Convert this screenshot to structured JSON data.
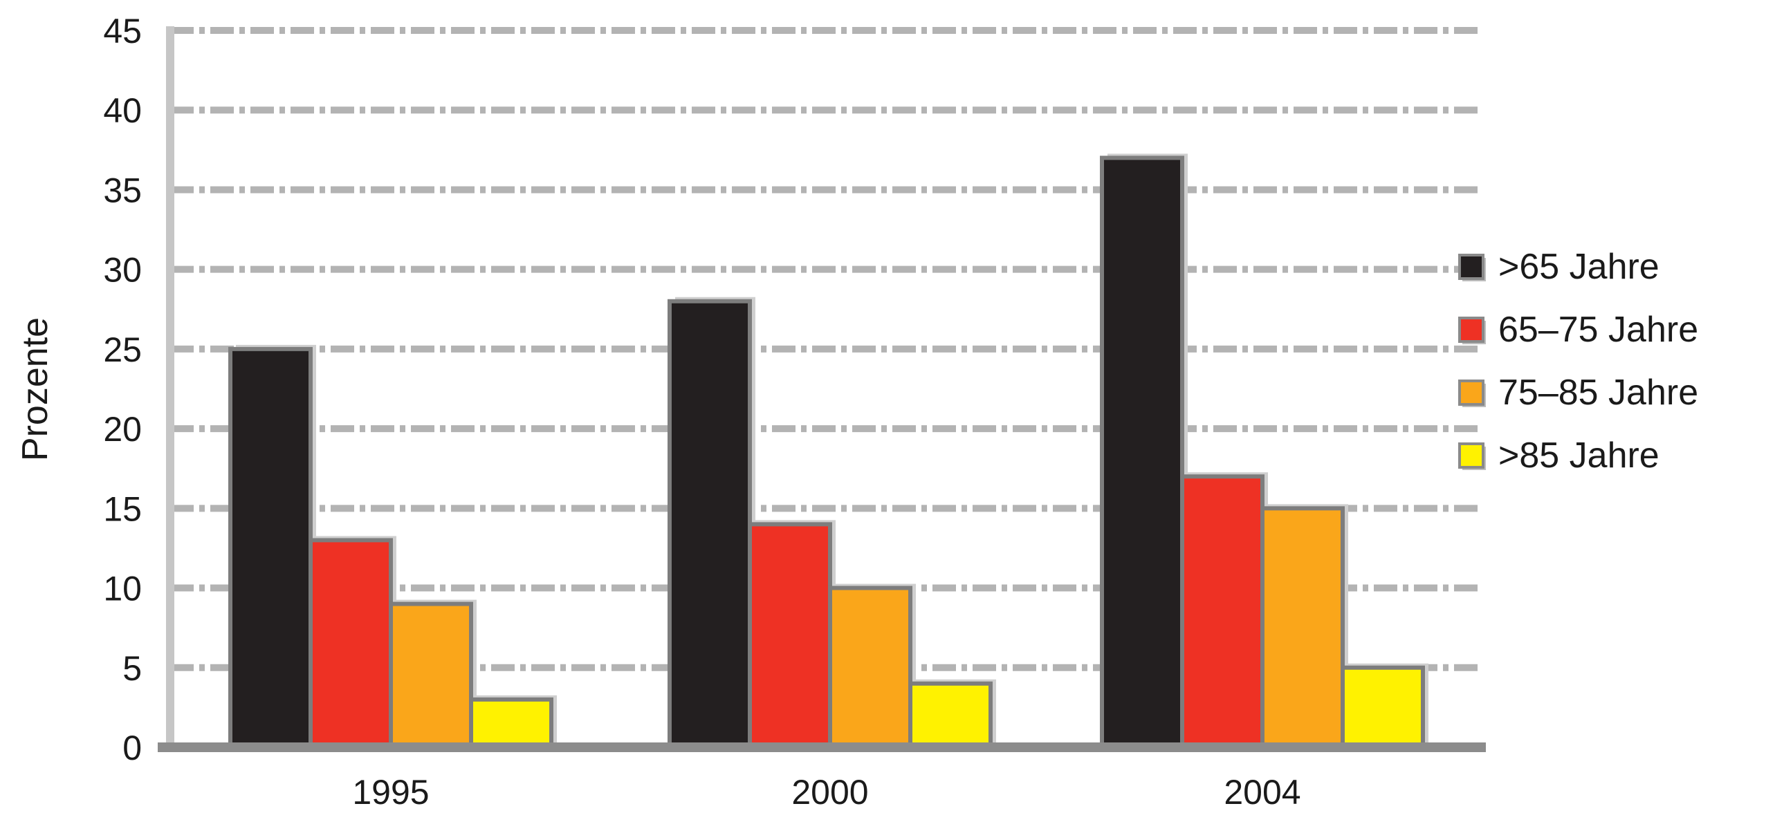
{
  "chart_data": {
    "type": "bar",
    "title": "",
    "xlabel": "",
    "ylabel": "Prozente",
    "categories": [
      "1995",
      "2000",
      "2004"
    ],
    "series": [
      {
        "name": ">65 Jahre",
        "color": "#231f20",
        "values": [
          25,
          28,
          37
        ]
      },
      {
        "name": "65–75 Jahre",
        "color": "#ee3124",
        "values": [
          13,
          14,
          17
        ]
      },
      {
        "name": "75–85 Jahre",
        "color": "#faa61a",
        "values": [
          9,
          10,
          15
        ]
      },
      {
        "name": ">85 Jahre",
        "color": "#fff200",
        "values": [
          3,
          4,
          5
        ]
      }
    ],
    "ylim": [
      0,
      45
    ],
    "yticks": [
      0,
      5,
      10,
      15,
      20,
      25,
      30,
      35,
      40,
      45
    ],
    "grid": true,
    "legend_position": "right"
  }
}
